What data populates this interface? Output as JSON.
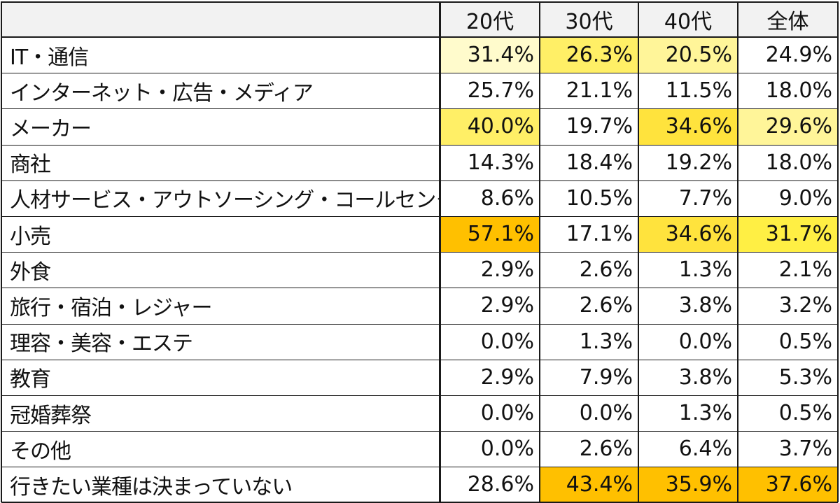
{
  "table": {
    "columns": [
      "",
      "20代",
      "30代",
      "40代",
      "全体"
    ],
    "rows": [
      {
        "label": "IT・通信",
        "values": [
          "31.4%",
          "26.3%",
          "20.5%",
          "24.9%"
        ],
        "fills": [
          "#fffbcc",
          "#ffef66",
          "#fff599",
          null
        ]
      },
      {
        "label": "インターネット・広告・メディア",
        "values": [
          "25.7%",
          "21.1%",
          "11.5%",
          "18.0%"
        ],
        "fills": [
          null,
          null,
          null,
          null
        ]
      },
      {
        "label": "メーカー",
        "values": [
          "40.0%",
          "19.7%",
          "34.6%",
          "29.6%"
        ],
        "fills": [
          "#ffef66",
          null,
          "#ffe33d",
          "#fff599"
        ]
      },
      {
        "label": "商社",
        "values": [
          "14.3%",
          "18.4%",
          "19.2%",
          "18.0%"
        ],
        "fills": [
          null,
          null,
          null,
          null
        ]
      },
      {
        "label": "人材サービス・アウトソーシング・コールセンター",
        "values": [
          "8.6%",
          "10.5%",
          "7.7%",
          "9.0%"
        ],
        "fills": [
          null,
          null,
          null,
          null
        ]
      },
      {
        "label": "小売",
        "values": [
          "57.1%",
          "17.1%",
          "34.6%",
          "31.7%"
        ],
        "fills": [
          "#ffc000",
          null,
          "#ffe33d",
          "#ffef44"
        ]
      },
      {
        "label": "外食",
        "values": [
          "2.9%",
          "2.6%",
          "1.3%",
          "2.1%"
        ],
        "fills": [
          null,
          null,
          null,
          null
        ]
      },
      {
        "label": "旅行・宿泊・レジャー",
        "values": [
          "2.9%",
          "2.6%",
          "3.8%",
          "3.2%"
        ],
        "fills": [
          null,
          null,
          null,
          null
        ]
      },
      {
        "label": "理容・美容・エステ",
        "values": [
          "0.0%",
          "1.3%",
          "0.0%",
          "0.5%"
        ],
        "fills": [
          null,
          null,
          null,
          null
        ]
      },
      {
        "label": "教育",
        "values": [
          "2.9%",
          "7.9%",
          "3.8%",
          "5.3%"
        ],
        "fills": [
          null,
          null,
          null,
          null
        ]
      },
      {
        "label": "冠婚葬祭",
        "values": [
          "0.0%",
          "0.0%",
          "1.3%",
          "0.5%"
        ],
        "fills": [
          null,
          null,
          null,
          null
        ]
      },
      {
        "label": "その他",
        "values": [
          "0.0%",
          "2.6%",
          "6.4%",
          "3.7%"
        ],
        "fills": [
          null,
          null,
          null,
          null
        ]
      },
      {
        "label": "行きたい業種は決まっていない",
        "values": [
          "28.6%",
          "43.4%",
          "35.9%",
          "37.6%"
        ],
        "fills": [
          null,
          "#ffc000",
          "#ffc000",
          "#ffc000"
        ]
      }
    ],
    "header_fill": "#f2f2f2",
    "border_color": "#1a1a1a"
  },
  "chart_data": {
    "type": "table",
    "columns": [
      "20代",
      "30代",
      "40代",
      "全体"
    ],
    "rows": [
      "IT・通信",
      "インターネット・広告・メディア",
      "メーカー",
      "商社",
      "人材サービス・アウトソーシング・コールセンター",
      "小売",
      "外食",
      "旅行・宿泊・レジャー",
      "理容・美容・エステ",
      "教育",
      "冠婚葬祭",
      "その他",
      "行きたい業種は決まっていない"
    ],
    "values": [
      [
        31.4,
        26.3,
        20.5,
        24.9
      ],
      [
        25.7,
        21.1,
        11.5,
        18.0
      ],
      [
        40.0,
        19.7,
        34.6,
        29.6
      ],
      [
        14.3,
        18.4,
        19.2,
        18.0
      ],
      [
        8.6,
        10.5,
        7.7,
        9.0
      ],
      [
        57.1,
        17.1,
        34.6,
        31.7
      ],
      [
        2.9,
        2.6,
        1.3,
        2.1
      ],
      [
        2.9,
        2.6,
        3.8,
        3.2
      ],
      [
        0.0,
        1.3,
        0.0,
        0.5
      ],
      [
        2.9,
        7.9,
        3.8,
        5.3
      ],
      [
        0.0,
        0.0,
        1.3,
        0.5
      ],
      [
        0.0,
        2.6,
        6.4,
        3.7
      ],
      [
        28.6,
        43.4,
        35.9,
        37.6
      ]
    ],
    "unit": "%"
  }
}
